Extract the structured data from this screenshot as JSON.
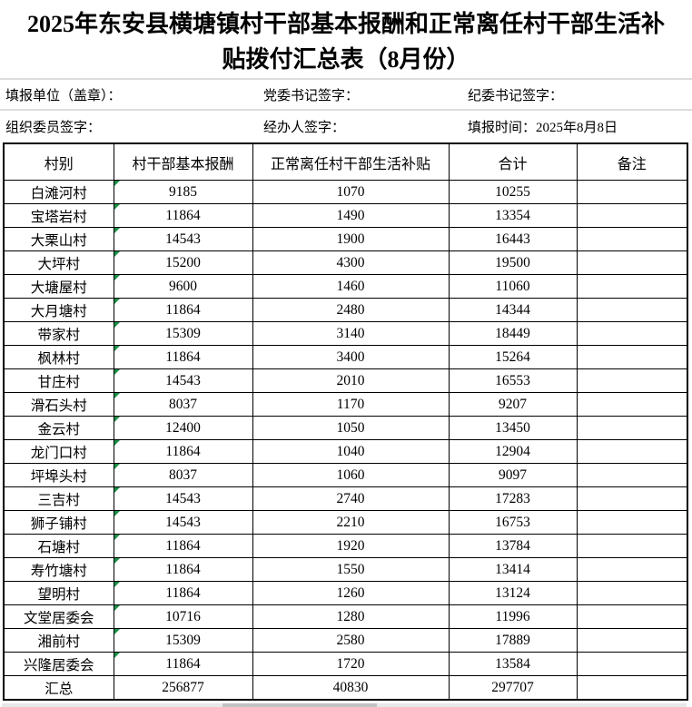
{
  "title": "2025年东安县横塘镇村干部基本报酬和正常离任村干部生活补贴拨付汇总表（8月份）",
  "meta": {
    "row1": [
      {
        "label": "填报单位（盖章）："
      },
      {
        "label": "党委书记签字："
      },
      {
        "label": "纪委书记签字："
      }
    ],
    "row2": [
      {
        "label": "组织委员签字："
      },
      {
        "label": "经办人签字："
      },
      {
        "label": "填报时间：2025年8月8日"
      }
    ]
  },
  "table": {
    "headers": [
      "村别",
      "村干部基本报酬",
      "正常离任村干部生活补贴",
      "合计",
      "备注"
    ],
    "rows": [
      [
        "白滩河村",
        "9185",
        "1070",
        "10255",
        ""
      ],
      [
        "宝塔岩村",
        "11864",
        "1490",
        "13354",
        ""
      ],
      [
        "大栗山村",
        "14543",
        "1900",
        "16443",
        ""
      ],
      [
        "大坪村",
        "15200",
        "4300",
        "19500",
        ""
      ],
      [
        "大塘屋村",
        "9600",
        "1460",
        "11060",
        ""
      ],
      [
        "大月塘村",
        "11864",
        "2480",
        "14344",
        ""
      ],
      [
        "带家村",
        "15309",
        "3140",
        "18449",
        ""
      ],
      [
        "枫林村",
        "11864",
        "3400",
        "15264",
        ""
      ],
      [
        "甘庄村",
        "14543",
        "2010",
        "16553",
        ""
      ],
      [
        "滑石头村",
        "8037",
        "1170",
        "9207",
        ""
      ],
      [
        "金云村",
        "12400",
        "1050",
        "13450",
        ""
      ],
      [
        "龙门口村",
        "11864",
        "1040",
        "12904",
        ""
      ],
      [
        "坪埠头村",
        "8037",
        "1060",
        "9097",
        ""
      ],
      [
        "三吉村",
        "14543",
        "2740",
        "17283",
        ""
      ],
      [
        "狮子铺村",
        "14543",
        "2210",
        "16753",
        ""
      ],
      [
        "石塘村",
        "11864",
        "1920",
        "13784",
        ""
      ],
      [
        "寿竹塘村",
        "11864",
        "1550",
        "13414",
        ""
      ],
      [
        "望明村",
        "11864",
        "1260",
        "13124",
        ""
      ],
      [
        "文堂居委会",
        "10716",
        "1280",
        "11996",
        ""
      ],
      [
        "湘前村",
        "15309",
        "2580",
        "17889",
        ""
      ],
      [
        "兴隆居委会",
        "11864",
        "1720",
        "13584",
        ""
      ],
      [
        "汇总",
        "256877",
        "40830",
        "297707",
        ""
      ]
    ],
    "total_row_label": "汇总",
    "selection": {
      "row": 2,
      "col": 0
    },
    "flagged_column": 1
  },
  "colors": {
    "selection_green": "#00a650",
    "flag_green": "#1a9148",
    "grid_border": "#000000",
    "meta_divider": "#dcdcdc"
  }
}
